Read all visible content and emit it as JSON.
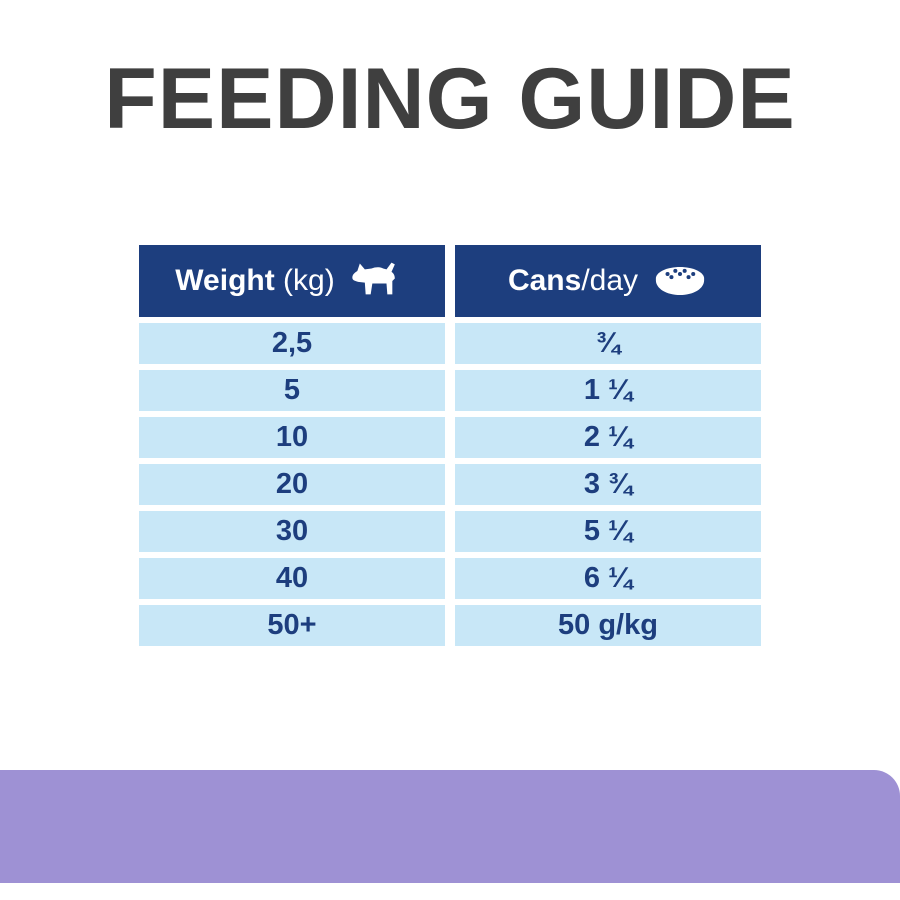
{
  "title": "FEEDING GUIDE",
  "table": {
    "columns": [
      {
        "bold": "Weight",
        "light": " (kg)",
        "icon": "dog-icon"
      },
      {
        "bold": "Cans",
        "light": "/day",
        "icon": "bowl-icon"
      }
    ],
    "rows": [
      {
        "weight": "2,5",
        "cans": "¾"
      },
      {
        "weight": "5",
        "cans": "1 ¼"
      },
      {
        "weight": "10",
        "cans": "2 ¼"
      },
      {
        "weight": "20",
        "cans": "3 ¾"
      },
      {
        "weight": "30",
        "cans": "5 ¼"
      },
      {
        "weight": "40",
        "cans": "6 ¼"
      },
      {
        "weight": "50+",
        "cans": "50 g/kg"
      }
    ]
  },
  "chart_data": {
    "type": "table",
    "title": "FEEDING GUIDE",
    "columns": [
      "Weight (kg)",
      "Cans/day"
    ],
    "rows": [
      [
        "2,5",
        "¾"
      ],
      [
        "5",
        "1 ¼"
      ],
      [
        "10",
        "2 ¼"
      ],
      [
        "20",
        "3 ¾"
      ],
      [
        "30",
        "5 ¼"
      ],
      [
        "40",
        "6 ¼"
      ],
      [
        "50+",
        "50 g/kg"
      ]
    ]
  },
  "colors": {
    "header_bg": "#1d3e7e",
    "row_bg": "#c8e7f7",
    "navy_text": "#1d3e7e",
    "title": "#3f3f3f",
    "band": "#9e91d4"
  }
}
